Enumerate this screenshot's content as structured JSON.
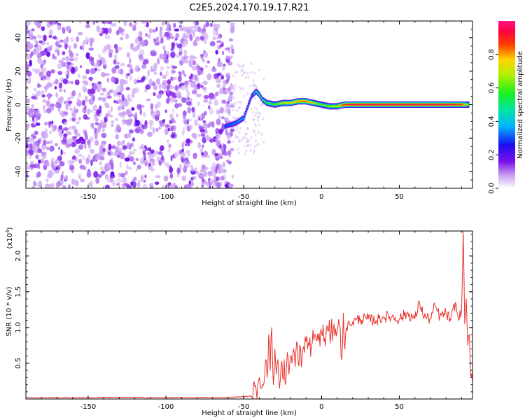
{
  "title": "C2E5.2024.170.19.17.R21",
  "colors": {
    "snr_line": "#e8302a",
    "axes": "#000000"
  },
  "chart_data": [
    {
      "type": "heatmap",
      "xlabel": "Height of straight line (km)",
      "ylabel": "Frequency (Hz)",
      "xlim": [
        -190,
        97
      ],
      "ylim": [
        -50,
        50
      ],
      "x_ticks": [
        "-150",
        "-100",
        "-50",
        "0",
        "50"
      ],
      "x_tick_values": [
        -150,
        -100,
        -50,
        0,
        50
      ],
      "y_ticks": [
        "-40",
        "-20",
        "0",
        "20",
        "40"
      ],
      "y_tick_values": [
        -40,
        -20,
        0,
        20,
        40
      ],
      "colorbar": {
        "label": "Normalized spectral amplitude",
        "range": [
          0,
          1
        ],
        "ticks": [
          "0.0",
          "0.2",
          "0.4",
          "0.6",
          "0.8"
        ],
        "tick_values": [
          0,
          0.2,
          0.4,
          0.6,
          0.8
        ],
        "colormap": "rainbow (white-purple-blue-cyan-green-yellow-red-magenta)"
      },
      "noise_region": {
        "x_range": [
          -190,
          -57
        ],
        "amplitude": [
          0.0,
          0.15
        ]
      },
      "ridge": {
        "description": "signal ridge converging to ~0 Hz",
        "x": [
          -62,
          -55,
          -50,
          -45,
          -42,
          -40,
          -38,
          -35,
          -30,
          -25,
          -20,
          -15,
          -10,
          -5,
          0,
          5,
          10,
          15,
          20,
          30,
          40,
          50,
          60,
          70,
          80,
          90,
          95
        ],
        "y": [
          -13,
          -11,
          -8,
          5,
          8,
          6,
          3,
          1,
          0,
          1,
          1,
          2,
          2,
          1,
          0,
          -1,
          -1,
          0,
          0,
          0,
          0,
          0,
          0,
          0,
          0,
          0,
          0
        ],
        "amplitude": [
          0.3,
          0.35,
          0.4,
          0.3,
          0.45,
          0.5,
          0.5,
          0.55,
          0.6,
          0.7,
          0.75,
          0.8,
          0.85,
          0.7,
          0.6,
          0.65,
          0.7,
          0.9,
          0.95,
          0.95,
          0.95,
          0.95,
          0.95,
          0.95,
          0.95,
          0.9,
          0.6
        ]
      }
    },
    {
      "type": "line",
      "xlabel": "Height of straight line (km)",
      "ylabel": "SNR (10 * v/v)",
      "y_multiplier": "(x10",
      "y_multiplier_exp": "4",
      "y_multiplier_close": ")",
      "xlim": [
        -190,
        97
      ],
      "ylim": [
        0,
        2.35
      ],
      "x_ticks": [
        "-150",
        "-100",
        "-50",
        "0",
        "50"
      ],
      "x_tick_values": [
        -150,
        -100,
        -50,
        0,
        50
      ],
      "y_ticks": [
        "0.5",
        "1.0",
        "1.5",
        "2.0"
      ],
      "y_tick_values": [
        0.5,
        1.0,
        1.5,
        2.0
      ],
      "series": [
        {
          "x": [
            -190,
            -150,
            -100,
            -60,
            -45,
            -42,
            -40,
            -38,
            -36,
            -35,
            -34,
            -33,
            -32,
            -31,
            -30,
            -29,
            -28,
            -27,
            -26,
            -25,
            -24,
            -23,
            -22,
            -21,
            -20,
            -19,
            -18,
            -17,
            -16,
            -15,
            -14,
            -13,
            -12,
            -11,
            -10,
            -8,
            -6,
            -4,
            -2,
            0,
            2,
            4,
            6,
            8,
            10,
            12,
            13,
            14,
            15,
            16,
            18,
            20,
            22,
            25,
            30,
            35,
            40,
            45,
            50,
            55,
            60,
            63,
            66,
            70,
            73,
            76,
            80,
            83,
            86,
            88,
            90,
            91,
            92,
            93,
            94,
            95,
            96,
            97
          ],
          "y": [
            0.02,
            0.02,
            0.02,
            0.02,
            0.04,
            0.12,
            0.3,
            0.2,
            0.55,
            0.3,
            0.9,
            0.4,
            1.0,
            0.2,
            0.7,
            0.35,
            0.55,
            0.15,
            0.45,
            0.3,
            0.55,
            0.2,
            0.65,
            0.35,
            0.6,
            0.5,
            0.7,
            0.45,
            0.8,
            0.5,
            0.75,
            0.45,
            0.7,
            0.65,
            0.8,
            0.75,
            0.78,
            0.9,
            0.82,
            0.92,
            0.85,
            0.95,
            0.9,
            1.05,
            0.95,
            1.0,
            0.55,
            1.2,
            0.7,
            1.0,
            1.05,
            1.08,
            1.1,
            1.12,
            1.12,
            1.1,
            1.15,
            1.15,
            1.12,
            1.2,
            1.12,
            1.35,
            1.15,
            1.12,
            1.3,
            1.15,
            1.2,
            1.1,
            1.35,
            1.1,
            1.25,
            2.35,
            1.05,
            1.4,
            0.75,
            0.9,
            0.3,
            0.25
          ]
        }
      ]
    }
  ]
}
